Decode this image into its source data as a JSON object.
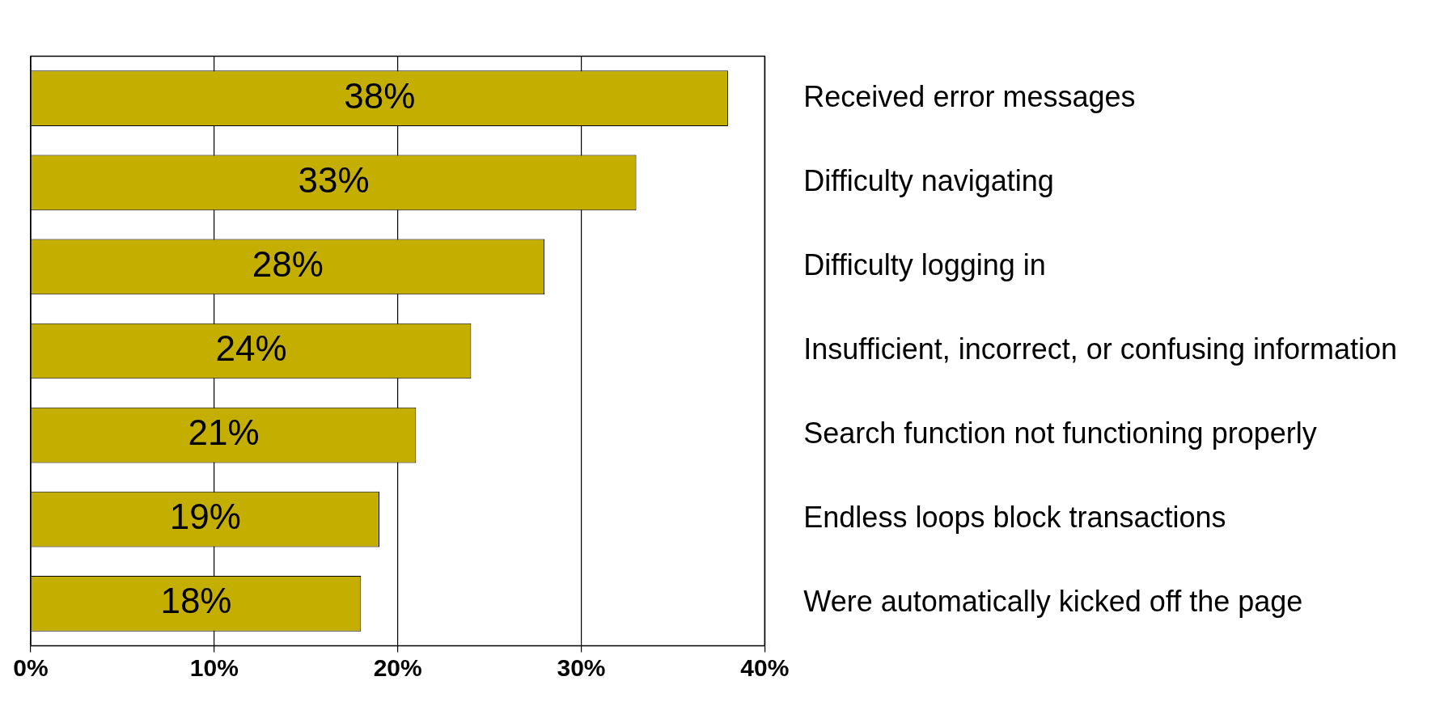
{
  "chart_data": {
    "type": "bar",
    "orientation": "horizontal",
    "categories": [
      "Received error messages",
      "Difficulty navigating",
      "Difficulty logging in",
      "Insufficient, incorrect, or confusing information",
      "Search function not functioning properly",
      "Endless loops block transactions",
      "Were automatically kicked off the page"
    ],
    "values": [
      38,
      33,
      28,
      24,
      21,
      19,
      18
    ],
    "value_labels": [
      "38%",
      "33%",
      "28%",
      "24%",
      "21%",
      "19%",
      "18%"
    ],
    "color": "#c4ae00",
    "xlim": [
      0,
      40
    ],
    "xticks": [
      {
        "value": 0,
        "label": "0%"
      },
      {
        "value": 10,
        "label": "10%"
      },
      {
        "value": 20,
        "label": "20%"
      },
      {
        "value": 30,
        "label": "30%"
      },
      {
        "value": 40,
        "label": "40%"
      }
    ],
    "grid": "x",
    "legend": false
  }
}
